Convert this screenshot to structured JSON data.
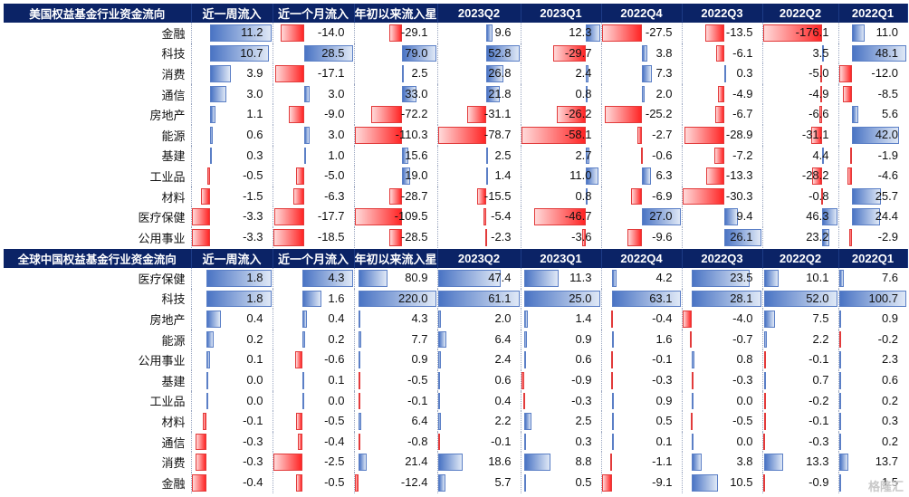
{
  "tables": [
    {
      "title": "美国权益基金行业资金流向",
      "headers": [
        "近一周流入",
        "近一个月流入",
        "年初以来流入星",
        "2023Q2",
        "2023Q1",
        "2022Q4",
        "2022Q3",
        "2022Q2",
        "2022Q1"
      ],
      "rows": [
        {
          "name": "金融",
          "values": [
            "11.2",
            "-14.0",
            "-29.1",
            "9.6",
            "12.3",
            "-27.5",
            "-13.5",
            "-176.1",
            "11.0"
          ]
        },
        {
          "name": "科技",
          "values": [
            "10.7",
            "28.5",
            "79.0",
            "52.8",
            "-29.7",
            "3.8",
            "-6.1",
            "3.5",
            "48.1"
          ]
        },
        {
          "name": "消费",
          "values": [
            "3.9",
            "-17.1",
            "2.5",
            "26.8",
            "2.4",
            "7.3",
            "0.3",
            "-5.0",
            "-12.0"
          ]
        },
        {
          "name": "通信",
          "values": [
            "3.0",
            "3.0",
            "33.0",
            "21.8",
            "0.8",
            "2.0",
            "-4.9",
            "-4.9",
            "-8.5"
          ]
        },
        {
          "name": "房地产",
          "values": [
            "1.1",
            "-9.0",
            "-72.2",
            "-31.1",
            "-26.2",
            "-25.2",
            "-6.7",
            "-6.6",
            "5.6"
          ]
        },
        {
          "name": "能源",
          "values": [
            "0.6",
            "3.0",
            "-110.3",
            "-78.7",
            "-58.1",
            "-2.7",
            "-28.9",
            "-31.1",
            "42.0"
          ]
        },
        {
          "name": "基建",
          "values": [
            "0.3",
            "1.0",
            "15.6",
            "2.5",
            "2.7",
            "-0.6",
            "-7.2",
            "4.4",
            "-1.9"
          ]
        },
        {
          "name": "工业品",
          "values": [
            "-0.5",
            "-5.0",
            "19.0",
            "1.4",
            "11.0",
            "6.3",
            "-13.3",
            "-28.2",
            "-4.6"
          ]
        },
        {
          "name": "材料",
          "values": [
            "-1.5",
            "-6.3",
            "-28.7",
            "-15.5",
            "0.8",
            "-6.9",
            "-30.3",
            "-0.8",
            "25.7"
          ]
        },
        {
          "name": "医疗保健",
          "values": [
            "-3.3",
            "-17.7",
            "-109.5",
            "-5.4",
            "-46.7",
            "27.0",
            "9.4",
            "46.3",
            "24.4"
          ]
        },
        {
          "name": "公用事业",
          "values": [
            "-3.3",
            "-18.5",
            "-28.5",
            "-2.3",
            "-3.6",
            "-9.6",
            "26.1",
            "23.2",
            "-2.9"
          ]
        }
      ]
    },
    {
      "title": "全球中国权益基金行业资金流向",
      "headers": [
        "近一周流入",
        "近一个月流入",
        "年初以来流入星",
        "2023Q2",
        "2023Q1",
        "2022Q4",
        "2022Q3",
        "2022Q2",
        "2022Q1"
      ],
      "rows": [
        {
          "name": "医疗保健",
          "values": [
            "1.8",
            "4.3",
            "80.9",
            "47.4",
            "11.3",
            "4.2",
            "23.5",
            "10.1",
            "7.6"
          ]
        },
        {
          "name": "科技",
          "values": [
            "1.8",
            "1.6",
            "220.0",
            "61.1",
            "25.0",
            "63.1",
            "28.1",
            "52.0",
            "100.7"
          ]
        },
        {
          "name": "房地产",
          "values": [
            "0.4",
            "0.4",
            "4.3",
            "2.0",
            "1.4",
            "-0.4",
            "-4.0",
            "7.5",
            "0.9"
          ]
        },
        {
          "name": "能源",
          "values": [
            "0.2",
            "0.2",
            "7.7",
            "6.4",
            "0.9",
            "1.6",
            "-0.7",
            "2.2",
            "-0.2"
          ]
        },
        {
          "name": "公用事业",
          "values": [
            "0.1",
            "-0.6",
            "0.9",
            "2.4",
            "0.6",
            "-0.1",
            "0.8",
            "-0.1",
            "2.3"
          ]
        },
        {
          "name": "基建",
          "values": [
            "0.0",
            "0.1",
            "-0.5",
            "0.6",
            "-0.9",
            "-0.3",
            "-0.3",
            "0.7",
            "0.6"
          ]
        },
        {
          "name": "工业品",
          "values": [
            "0.0",
            "0.0",
            "-0.1",
            "0.4",
            "-0.3",
            "0.9",
            "0.0",
            "-0.2",
            "0.2"
          ]
        },
        {
          "name": "材料",
          "values": [
            "-0.1",
            "-0.5",
            "6.4",
            "2.2",
            "2.5",
            "0.5",
            "-0.5",
            "-0.1",
            "0.3"
          ]
        },
        {
          "name": "通信",
          "values": [
            "-0.3",
            "-0.4",
            "-0.8",
            "-0.1",
            "0.3",
            "0.1",
            "0.0",
            "-0.3",
            "0.2"
          ]
        },
        {
          "name": "消费",
          "values": [
            "-0.3",
            "-2.5",
            "21.4",
            "18.6",
            "8.8",
            "-1.1",
            "3.8",
            "13.3",
            "13.7"
          ]
        },
        {
          "name": "金融",
          "values": [
            "-0.4",
            "-0.5",
            "-12.4",
            "5.7",
            "0.5",
            "-9.1",
            "10.5",
            "-0.9",
            "1.5"
          ]
        }
      ]
    }
  ],
  "watermark": "格隆汇",
  "colors": {
    "header_bg": "#0b2366",
    "positive": "#4a74c4",
    "negative": "#ff2525"
  }
}
